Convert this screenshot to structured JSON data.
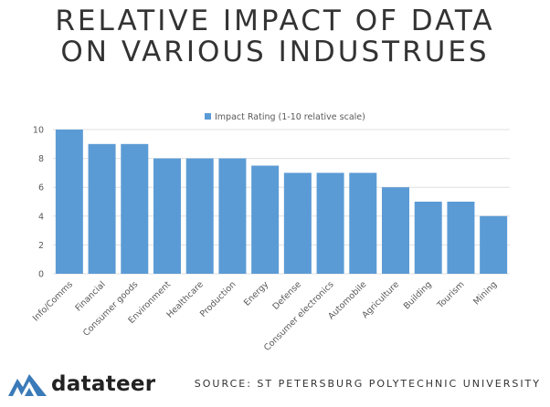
{
  "title_line1": "RELATIVE IMPACT OF DATA",
  "title_line2": "ON VARIOUS INDUSTRUES",
  "logo_text": "datateer",
  "source": "SOURCE: ST PETERSBURG POLYTECHNIC UNIVERSITY",
  "colors": {
    "bar": "#5b9bd5",
    "grid": "#e0e0e0",
    "text": "#595959"
  },
  "chart_data": {
    "type": "bar",
    "categories": [
      "Info/Comms",
      "Financial",
      "Consumer goods",
      "Environment",
      "Healthcare",
      "Production",
      "Energy",
      "Defense",
      "Consumer electronics",
      "Automobile",
      "Agriculture",
      "Building",
      "Tourism",
      "Mining"
    ],
    "series": [
      {
        "name": "Impact Rating (1-10 relative scale)",
        "values": [
          10,
          9,
          9,
          8,
          8,
          8,
          7.5,
          7,
          7,
          7,
          6,
          5,
          5,
          4
        ]
      }
    ],
    "y_ticks": [
      "0",
      "2",
      "4",
      "6",
      "8",
      "10"
    ],
    "ylim": [
      0,
      10
    ],
    "legend_position": "top",
    "grid": true
  }
}
